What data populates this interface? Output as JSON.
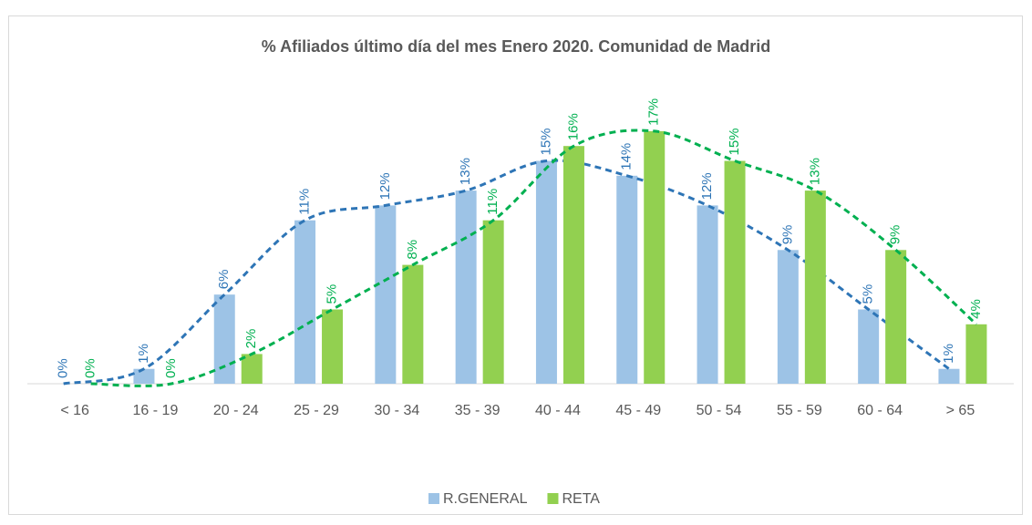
{
  "chart_data": {
    "type": "bar",
    "title": "% Afiliados último día del mes Enero 2020. Comunidad de Madrid",
    "categories": [
      "< 16",
      "16 - 19",
      "20 - 24",
      "25 - 29",
      "30 - 34",
      "35 - 39",
      "40 - 44",
      "45 - 49",
      "50 - 54",
      "55 - 59",
      "60 - 64",
      "> 65"
    ],
    "series": [
      {
        "name": "R.GENERAL",
        "color": "#9dc3e6",
        "label_color": "#2e75b6",
        "trend_color": "#2e75b6",
        "values": [
          0,
          1,
          6,
          11,
          12,
          13,
          15,
          14,
          12,
          9,
          5,
          1
        ],
        "value_labels": [
          "0%",
          "1%",
          "6%",
          "11%",
          "12%",
          "13%",
          "15%",
          "14%",
          "12%",
          "9%",
          "5%",
          "1%"
        ]
      },
      {
        "name": "RETA",
        "color": "#92d050",
        "label_color": "#00b050",
        "trend_color": "#00b050",
        "values": [
          0,
          0,
          2,
          5,
          8,
          11,
          16,
          17,
          15,
          13,
          9,
          4
        ],
        "value_labels": [
          "0%",
          "0%",
          "2%",
          "5%",
          "8%",
          "11%",
          "16%",
          "17%",
          "15%",
          "13%",
          "9%",
          "4%"
        ]
      }
    ],
    "legend": "bottom"
  }
}
